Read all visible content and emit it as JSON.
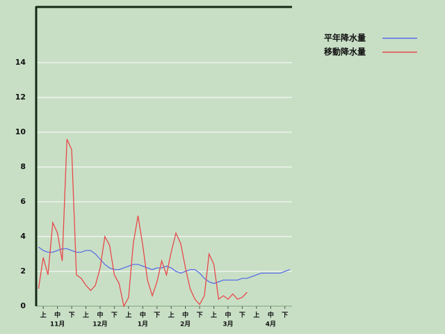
{
  "chart_data": {
    "type": "line",
    "categories": [
      null,
      "上",
      null,
      null,
      "中",
      null,
      null,
      "下",
      null,
      null,
      "上",
      null,
      null,
      "中",
      null,
      null,
      "下",
      null,
      null,
      "上",
      null,
      null,
      "中",
      null,
      null,
      "下",
      null,
      null,
      "上",
      null,
      null,
      "中",
      null,
      null,
      "下",
      null,
      null,
      "上",
      null,
      null,
      "中",
      null,
      null,
      "下",
      null,
      null,
      "上",
      null,
      null,
      "中",
      null,
      null,
      "下",
      null
    ],
    "months": [
      "11月",
      "12月",
      "1月",
      "2月",
      "3月",
      "4月"
    ],
    "series": [
      {
        "name": "平年降水量",
        "color": "#5a6ee6",
        "values": [
          3.4,
          3.2,
          3.1,
          3.1,
          3.2,
          3.3,
          3.3,
          3.2,
          3.1,
          3.1,
          3.2,
          3.2,
          3.0,
          2.7,
          2.4,
          2.2,
          2.1,
          2.1,
          2.2,
          2.3,
          2.4,
          2.4,
          2.3,
          2.2,
          2.1,
          2.2,
          2.2,
          2.3,
          2.2,
          2.0,
          1.9,
          2.0,
          2.1,
          2.1,
          1.9,
          1.6,
          1.4,
          1.3,
          1.4,
          1.5,
          1.5,
          1.5,
          1.5,
          1.6,
          1.6,
          1.7,
          1.8,
          1.9,
          1.9,
          1.9,
          1.9,
          1.9,
          2.0,
          2.1
        ]
      },
      {
        "name": "移動降水量",
        "color": "#e84848",
        "values": [
          1.0,
          2.8,
          1.8,
          4.8,
          4.2,
          2.6,
          9.6,
          9.0,
          1.8,
          1.6,
          1.2,
          0.9,
          1.2,
          2.2,
          4.0,
          3.5,
          1.8,
          1.3,
          0.0,
          0.5,
          3.6,
          5.2,
          3.5,
          1.5,
          0.6,
          1.4,
          2.6,
          1.8,
          3.1,
          4.2,
          3.6,
          2.2,
          1.0,
          0.4,
          0.1,
          0.6,
          3.0,
          2.4,
          0.4,
          0.6,
          0.4,
          0.7,
          0.4,
          0.5,
          0.8,
          null,
          null,
          null,
          null,
          null,
          null,
          null,
          null,
          null
        ]
      }
    ],
    "ylim": [
      0,
      17.2
    ],
    "yticks": [
      0,
      2,
      4,
      6,
      8,
      10,
      12,
      14
    ],
    "grid": true
  }
}
